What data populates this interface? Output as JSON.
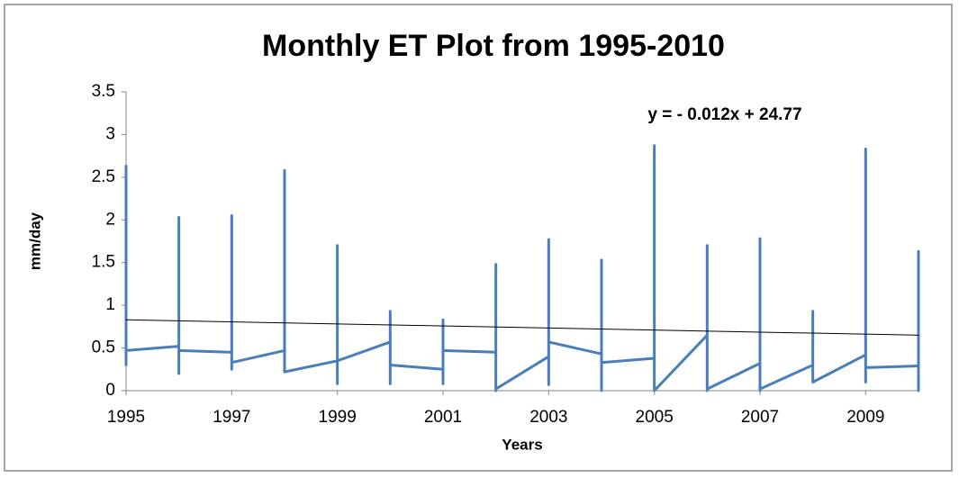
{
  "chart_data": {
    "type": "line",
    "title": "Monthly ET Plot from 1995-2010",
    "x_label": "Years",
    "y_label": "mm/day",
    "annotation": "y = - 0.012x + 24.77",
    "xlim": [
      1995,
      2010
    ],
    "xticks": [
      1995,
      1997,
      1999,
      2001,
      2003,
      2005,
      2007,
      2009
    ],
    "ylim": [
      0,
      3.5
    ],
    "yticks": [
      0,
      0.5,
      1,
      1.5,
      2,
      2.5,
      3,
      3.5
    ],
    "grid": false,
    "series": [
      {
        "color": "#4a7ebb",
        "width": 3,
        "x": [
          1995,
          1995,
          1995,
          1996,
          1996,
          1996,
          1996,
          1997,
          1997,
          1997,
          1997,
          1998,
          1998,
          1998,
          1998,
          1999,
          1999,
          1999,
          1999,
          2000,
          2000,
          2000,
          2000,
          2001,
          2001,
          2001,
          2001,
          2002,
          2002,
          2002,
          2002,
          2003,
          2003,
          2003,
          2003,
          2004,
          2004,
          2004,
          2004,
          2005,
          2005,
          2005,
          2005,
          2006,
          2006,
          2006,
          2006,
          2007,
          2007,
          2007,
          2007,
          2008,
          2008,
          2008,
          2008,
          2009,
          2009,
          2009,
          2009,
          2010,
          2010,
          2010
        ],
        "values": [
          0.3,
          2.63,
          0.47,
          0.52,
          2.03,
          0.2,
          0.47,
          0.45,
          2.05,
          0.25,
          0.33,
          0.47,
          2.58,
          0.3,
          0.22,
          0.35,
          1.7,
          0.08,
          0.35,
          0.57,
          0.93,
          0.08,
          0.3,
          0.25,
          0.83,
          0.08,
          0.47,
          0.45,
          1.48,
          0,
          0.02,
          0.4,
          1.77,
          0.07,
          0.57,
          0.43,
          1.53,
          0,
          0.33,
          0.38,
          2.87,
          0,
          0,
          0.65,
          1.7,
          0,
          0.02,
          0.32,
          1.78,
          0,
          0.02,
          0.3,
          0.93,
          0.1,
          0.1,
          0.42,
          2.83,
          0.1,
          0.27,
          0.29,
          1.63,
          0
        ]
      },
      {
        "color": "#000000",
        "width": 1,
        "x": [
          1995,
          2010
        ],
        "values": [
          0.83,
          0.65
        ]
      }
    ]
  }
}
